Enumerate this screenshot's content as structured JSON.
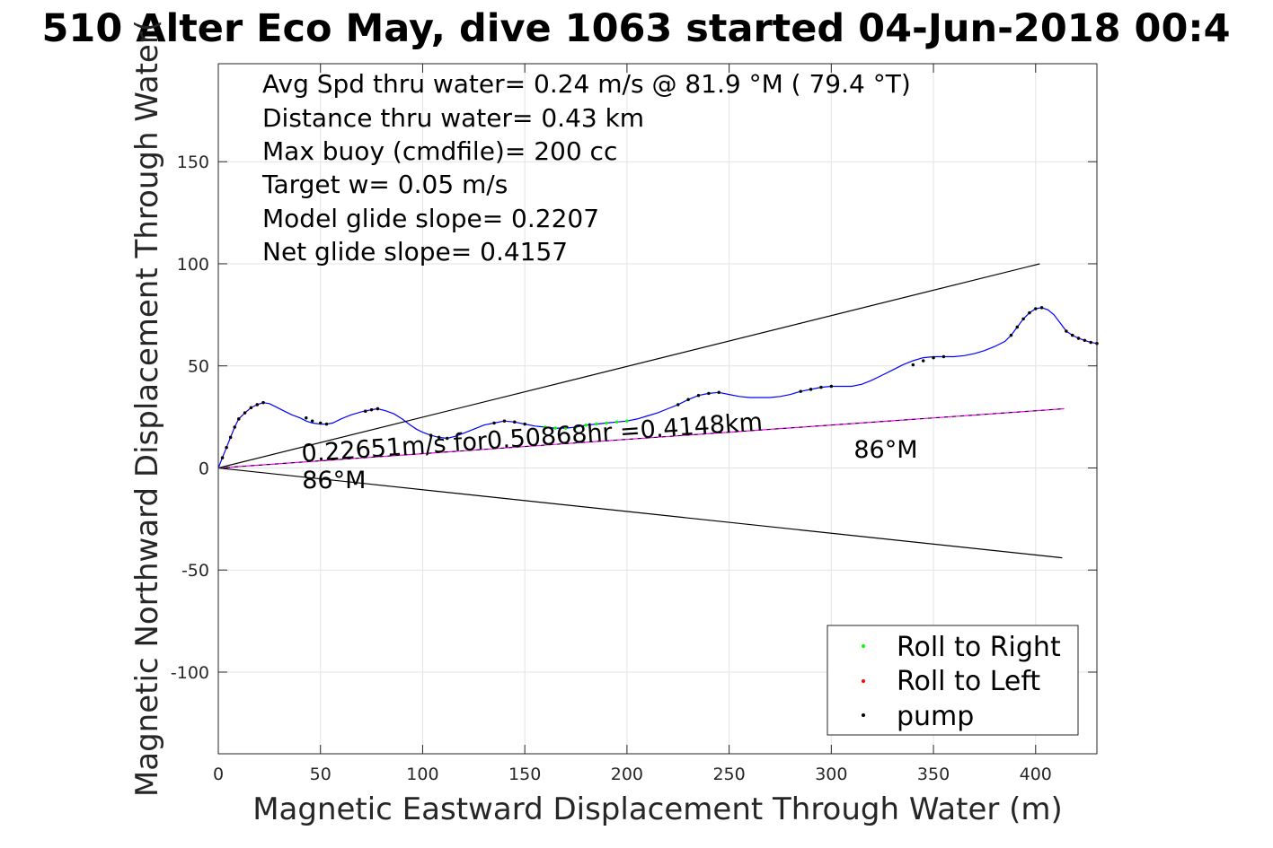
{
  "chart_data": {
    "type": "line",
    "title": "510 Alter Eco May, dive 1063 started 04-Jun-2018 00:4",
    "xlabel": "Magnetic Eastward Displacement Through Water (m)",
    "ylabel": "Magnetic Northward Displacement Through Water(",
    "xlim": [
      0,
      430
    ],
    "ylim": [
      -140,
      198
    ],
    "xticks": [
      0,
      50,
      100,
      150,
      200,
      250,
      300,
      350,
      400
    ],
    "xtick_labels": [
      "0",
      "50",
      "100",
      "150",
      "200",
      "250",
      "300",
      "350",
      "400"
    ],
    "yticks": [
      -100,
      -50,
      0,
      50,
      100,
      150
    ],
    "ytick_labels": [
      "-100",
      "-50",
      "0",
      "50",
      "100",
      "150"
    ],
    "grid": true,
    "legend_position": "bottom-right",
    "info_lines": [
      "Avg Spd thru water=  0.24 m/s @  81.9 °M ( 79.4 °T)",
      "Distance thru water=  0.43 km",
      "Max buoy (cmdfile)= 200 cc",
      "Target w= 0.05 m/s",
      "Model glide slope= 0.2207",
      "Net glide slope= 0.4157"
    ],
    "annotations": [
      {
        "text": "0.22651m/s for0.50868hr =0.4148km",
        "x": 41,
        "y": 3,
        "rotation_deg": -4
      },
      {
        "text": "86°M",
        "x": 41,
        "y": -10,
        "rotation_deg": 0
      },
      {
        "text": "86°M",
        "x": 311,
        "y": 5,
        "rotation_deg": 0
      }
    ],
    "series": [
      {
        "name": "track",
        "color": "#0000ff",
        "x": [
          0,
          2,
          4,
          6,
          8,
          10,
          13,
          16,
          19,
          22,
          25,
          28,
          32,
          36,
          40,
          43,
          46,
          50,
          53,
          56,
          60,
          65,
          70,
          75,
          78,
          82,
          86,
          90,
          94,
          97,
          100,
          104,
          108,
          112,
          116,
          120,
          125,
          130,
          135,
          140,
          145,
          150,
          155,
          160,
          165,
          170,
          175,
          180,
          185,
          190,
          195,
          200,
          205,
          210,
          215,
          220,
          225,
          230,
          235,
          240,
          245,
          250,
          255,
          260,
          265,
          270,
          275,
          280,
          285,
          290,
          295,
          300,
          305,
          310,
          315,
          320,
          325,
          330,
          335,
          340,
          345,
          350,
          355,
          360,
          365,
          370,
          375,
          380,
          385,
          388,
          391,
          394,
          397,
          400,
          403,
          406,
          409,
          412,
          415,
          418,
          421,
          424,
          427,
          430
        ],
        "y": [
          0,
          5,
          10,
          15,
          20,
          24,
          27,
          29.5,
          31,
          32,
          31.5,
          30,
          28,
          26,
          24.5,
          23,
          22,
          21.5,
          21.5,
          22,
          24,
          26,
          27.5,
          28.5,
          29,
          28,
          26.5,
          24,
          21,
          19,
          17.5,
          16,
          15,
          14.5,
          15.5,
          17,
          19,
          21,
          22,
          23,
          22.5,
          21.5,
          20.5,
          20,
          19.5,
          19.5,
          20,
          21,
          21.5,
          22,
          22.5,
          23,
          24,
          25.5,
          27,
          29,
          31,
          33.5,
          35.5,
          36.5,
          37,
          36,
          35,
          34.5,
          34.5,
          34.5,
          35,
          36,
          37.5,
          38.5,
          39.5,
          40,
          40,
          40,
          41,
          43,
          45.5,
          48,
          50.5,
          52.5,
          54,
          54.5,
          54.5,
          54.5,
          55,
          56,
          57.5,
          59.5,
          62,
          65,
          69,
          73,
          76,
          78,
          78.5,
          77.5,
          75,
          71,
          67,
          65,
          63.5,
          62.5,
          61.5,
          61
        ]
      },
      {
        "name": "Roll to Right",
        "marker": "point",
        "color": "#00ff00",
        "x": [
          43,
          46,
          50,
          53,
          104,
          108,
          112,
          140,
          145,
          150,
          160,
          165,
          170,
          175,
          180,
          185,
          190,
          195,
          200,
          225,
          230,
          235,
          240,
          245,
          285,
          290,
          295,
          300,
          340,
          345,
          350,
          355,
          388,
          391,
          394,
          397,
          400,
          403
        ],
        "y": [
          24.5,
          23,
          22,
          21.5,
          16,
          15,
          14.5,
          23,
          22.5,
          21.5,
          20,
          19.5,
          19.5,
          20,
          21,
          21.5,
          22,
          22.5,
          23,
          31,
          33.5,
          35.5,
          36.5,
          37,
          37.5,
          38.5,
          39.5,
          40,
          50.5,
          52.5,
          54,
          54.5,
          65,
          69,
          73,
          76,
          78,
          78.5
        ]
      },
      {
        "name": "Roll to Left",
        "marker": "point",
        "color": "#ff0000",
        "x": [
          2,
          4,
          6,
          8,
          10,
          13,
          16,
          19,
          22,
          72,
          75,
          78,
          135,
          140,
          145,
          415,
          418,
          421,
          424,
          427,
          430
        ],
        "y": [
          5,
          10,
          15,
          20,
          24,
          27,
          29.5,
          31,
          32,
          27.8,
          28.5,
          29,
          22,
          23,
          22.5,
          67,
          65,
          63.5,
          62.5,
          61.5,
          61
        ]
      },
      {
        "name": "pump",
        "marker": "point",
        "color": "#000000",
        "x": [
          2,
          4,
          6,
          8,
          10,
          13,
          16,
          19,
          22,
          43,
          46,
          50,
          53,
          72,
          75,
          78,
          104,
          108,
          112,
          135,
          140,
          145,
          150,
          225,
          230,
          235,
          240,
          245,
          285,
          290,
          295,
          300,
          340,
          345,
          350,
          355,
          388,
          391,
          394,
          397,
          400,
          403,
          415,
          418,
          421,
          424,
          427,
          430
        ],
        "y": [
          5,
          10,
          15,
          20,
          24,
          27,
          29.5,
          31,
          32,
          24.5,
          23,
          22,
          21.5,
          27.8,
          28.5,
          29,
          16,
          15,
          14.5,
          22,
          23,
          22.5,
          21.5,
          31,
          33.5,
          35.5,
          36.5,
          37,
          37.5,
          38.5,
          39.5,
          40,
          50.5,
          52.5,
          54,
          54.5,
          65,
          69,
          73,
          76,
          78,
          78.5,
          67,
          65,
          63.5,
          62.5,
          61.5,
          61
        ]
      },
      {
        "name": "envelope-upper",
        "color": "#000000",
        "x": [
          0,
          402
        ],
        "y": [
          0,
          100
        ]
      },
      {
        "name": "envelope-lower",
        "color": "#000000",
        "x": [
          0,
          413
        ],
        "y": [
          0,
          -44
        ]
      },
      {
        "name": "heading-line",
        "color": "#ff00ff",
        "x": [
          0,
          414
        ],
        "y": [
          0,
          29
        ]
      },
      {
        "name": "heading-line-dashed",
        "color": "#000000",
        "dash": true,
        "x": [
          0,
          414
        ],
        "y": [
          0,
          29
        ]
      }
    ],
    "legend": [
      {
        "label": "Roll to Right",
        "color": "#00ff00"
      },
      {
        "label": "Roll to Left",
        "color": "#ff0000"
      },
      {
        "label": "pump",
        "color": "#000000"
      }
    ]
  }
}
